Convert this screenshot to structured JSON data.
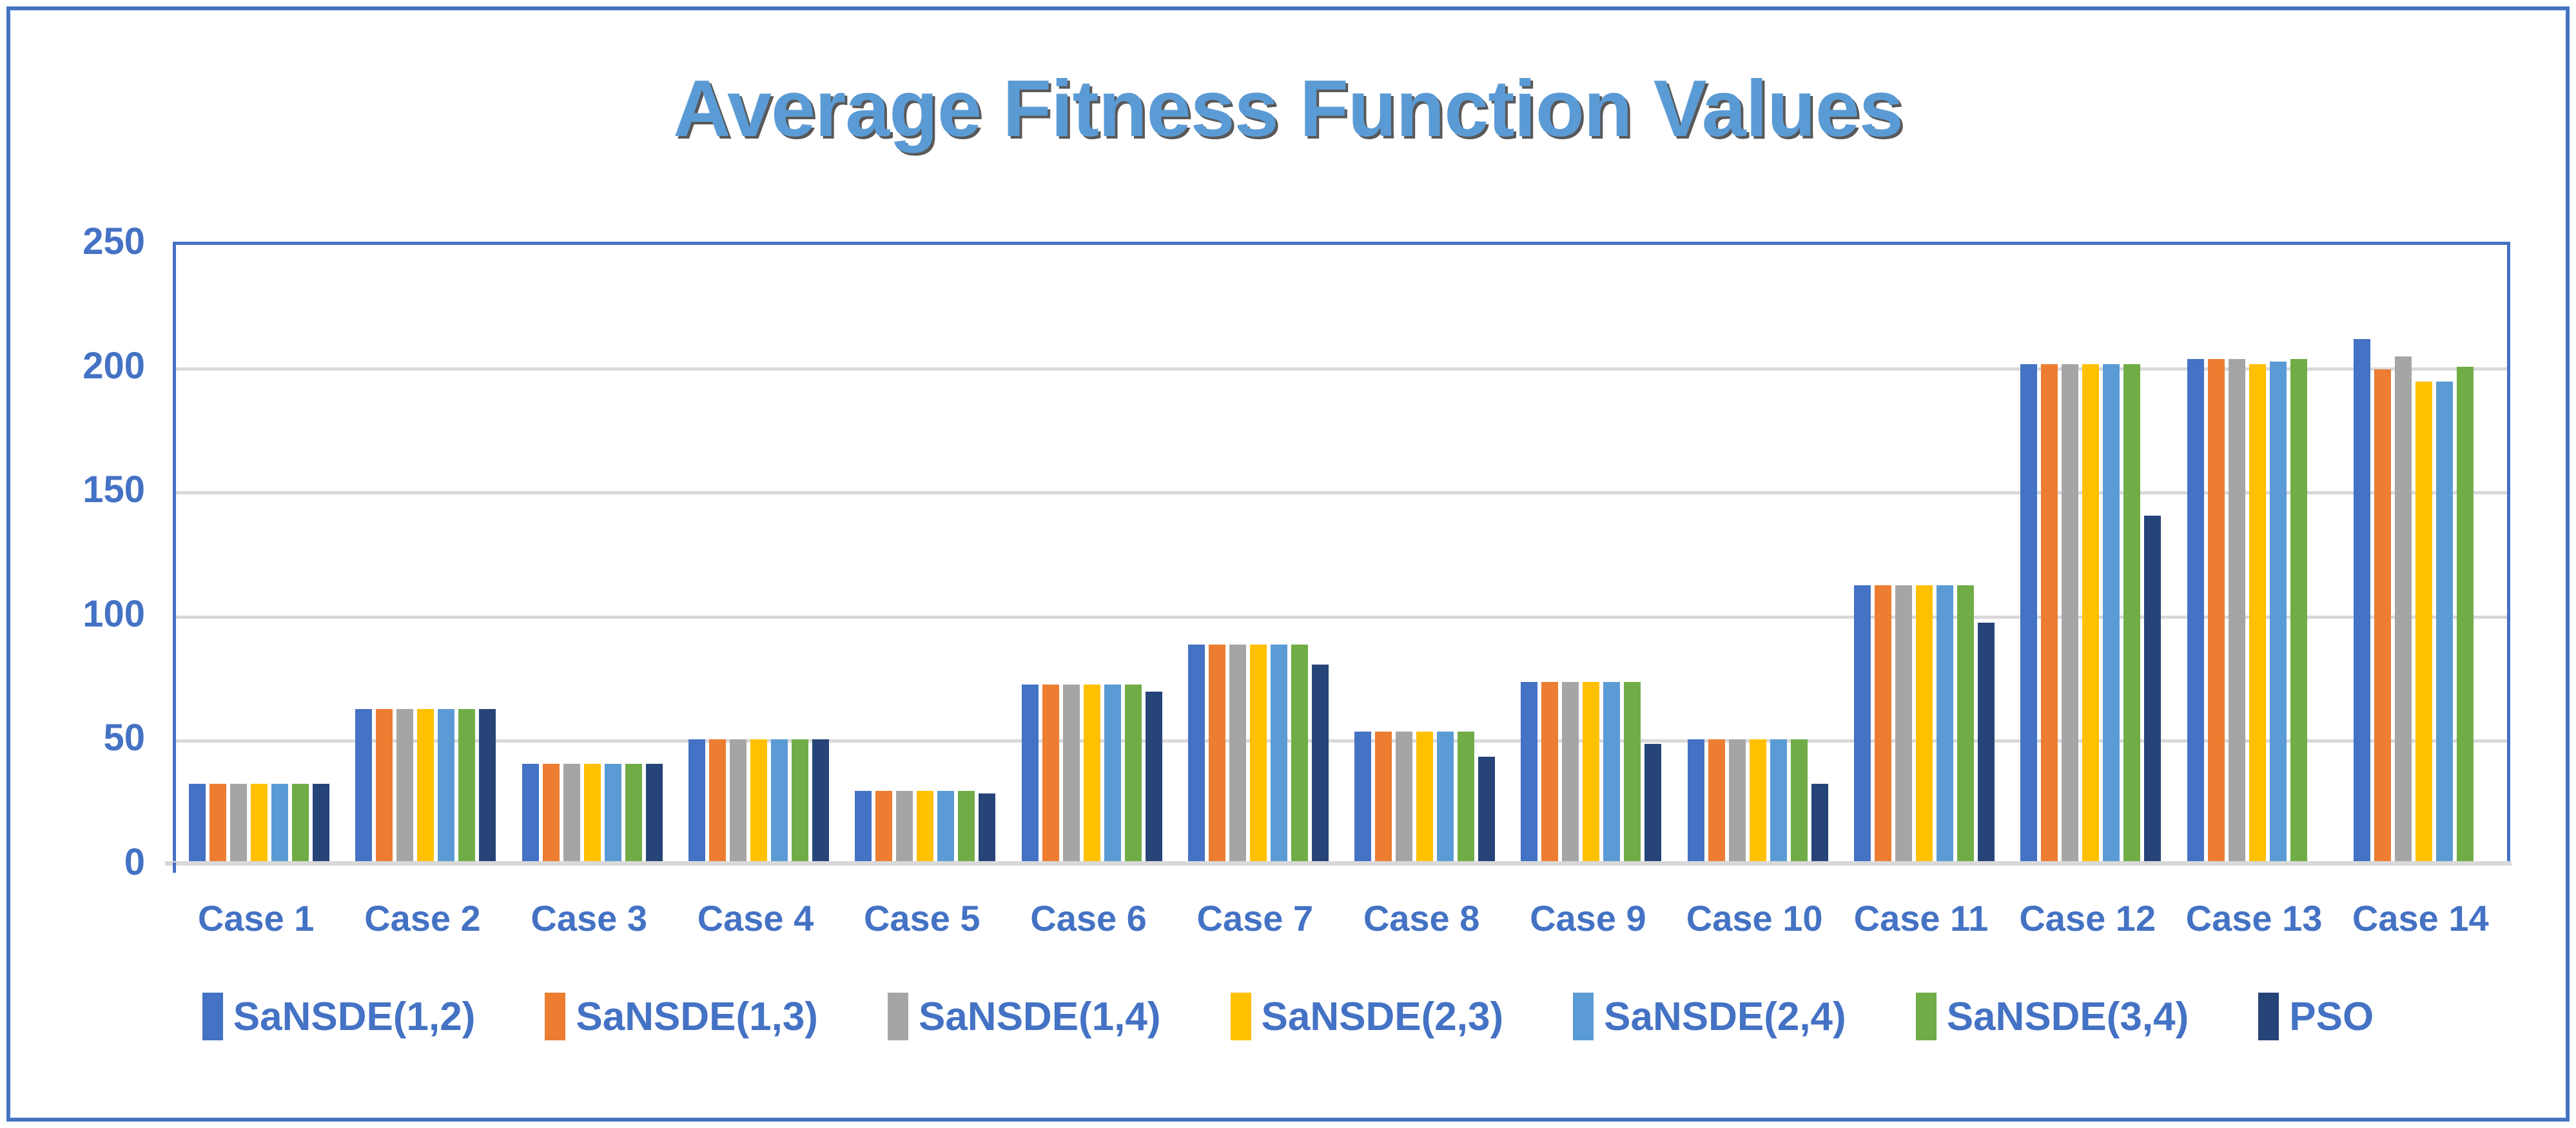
{
  "chart_data": {
    "type": "bar",
    "title": "Average Fitness Function Values",
    "categories": [
      "Case 1",
      "Case 2",
      "Case 3",
      "Case 4",
      "Case 5",
      "Case 6",
      "Case 7",
      "Case 8",
      "Case 9",
      "Case 10",
      "Case 11",
      "Case 12",
      "Case 13",
      "Case 14"
    ],
    "series": [
      {
        "name": "SaNSDE(1,2)",
        "color": "#4472C4",
        "values": [
          33,
          63,
          41,
          51,
          30,
          73,
          89,
          54,
          74,
          51,
          113,
          202,
          204,
          212
        ]
      },
      {
        "name": "SaNSDE(1,3)",
        "color": "#ED7D31",
        "values": [
          33,
          63,
          41,
          51,
          30,
          73,
          89,
          54,
          74,
          51,
          113,
          202,
          204,
          200
        ]
      },
      {
        "name": "SaNSDE(1,4)",
        "color": "#A5A5A5",
        "values": [
          33,
          63,
          41,
          51,
          30,
          73,
          89,
          54,
          74,
          51,
          113,
          202,
          204,
          205
        ]
      },
      {
        "name": "SaNSDE(2,3)",
        "color": "#FFC000",
        "values": [
          33,
          63,
          41,
          51,
          30,
          73,
          89,
          54,
          74,
          51,
          113,
          202,
          202,
          195
        ]
      },
      {
        "name": "SaNSDE(2,4)",
        "color": "#5B9BD5",
        "values": [
          33,
          63,
          41,
          51,
          30,
          73,
          89,
          54,
          74,
          51,
          113,
          202,
          203,
          195
        ]
      },
      {
        "name": "SaNSDE(3,4)",
        "color": "#70AD47",
        "values": [
          33,
          63,
          41,
          51,
          30,
          73,
          89,
          54,
          74,
          51,
          113,
          202,
          204,
          201
        ]
      },
      {
        "name": "PSO",
        "color": "#264478",
        "values": [
          33,
          63,
          41,
          51,
          29,
          70,
          81,
          44,
          49,
          33,
          98,
          141,
          null,
          null
        ]
      }
    ],
    "ylim": [
      0,
      250
    ],
    "yticks": [
      0,
      50,
      100,
      150,
      200,
      250
    ],
    "grid": true,
    "legend_position": "bottom"
  },
  "colors": {
    "axis_text": "#4472C4",
    "gridline": "#D9D9D9",
    "plot_border": "#4472C4",
    "baseline": "#D9D9D9",
    "frame_border": "#4472C4",
    "title_fill": "#5B9BD5",
    "title_outline": "#595959"
  }
}
